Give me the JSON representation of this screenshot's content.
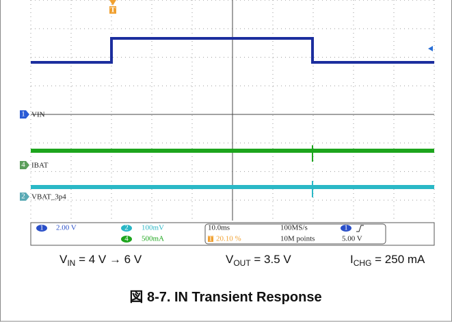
{
  "scope": {
    "trigger_marker": "T",
    "channels": [
      {
        "number": "1",
        "label": "VIN"
      },
      {
        "number": "4",
        "label": "IBAT"
      },
      {
        "number": "2",
        "label": "VBAT_3p4"
      }
    ],
    "readout": {
      "ch1": {
        "number": "1",
        "scale": "2.00 V"
      },
      "ch2": {
        "number": "2",
        "scale": "100mV"
      },
      "ch4": {
        "number": "4",
        "scale": "500mA"
      },
      "timebase": "10.0ms",
      "trigger_marker": "T",
      "trigger_position": "20.10 %",
      "sample_rate": "100MS/s",
      "record_length": "10M points",
      "trigger": {
        "number": "1",
        "level": "5.00 V"
      }
    }
  },
  "conditions": [
    {
      "symbol": "V",
      "sub": "IN",
      "text": " = 4 V → 6 V"
    },
    {
      "symbol": "V",
      "sub": "OUT",
      "text": " = 3.5 V"
    },
    {
      "symbol": "I",
      "sub": "CHG",
      "text": " = 250 mA"
    }
  ],
  "caption": "図 8-7. IN Transient Response"
}
